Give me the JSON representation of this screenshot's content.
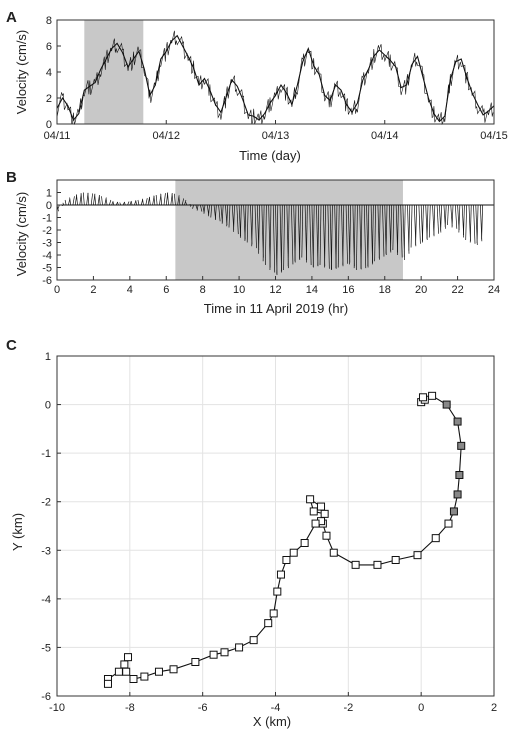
{
  "chart_data": [
    {
      "panel": "A",
      "type": "line",
      "xlabel": "Time (day)",
      "ylabel": "Velocity (cm/s)",
      "xlim": [
        0,
        4
      ],
      "ylim": [
        0,
        8
      ],
      "x_tick_labels": [
        "04/11",
        "04/12",
        "04/13",
        "04/14",
        "04/15"
      ],
      "yticks": [
        0,
        2,
        4,
        6,
        8
      ],
      "shaded_interval": [
        0.25,
        0.79
      ],
      "series": [
        {
          "x": [
            0,
            0.05,
            0.1,
            0.15,
            0.2,
            0.25,
            0.3,
            0.35,
            0.4,
            0.45,
            0.5,
            0.55,
            0.6,
            0.65,
            0.7,
            0.75,
            0.8,
            0.85,
            0.9,
            0.95,
            1.0,
            1.05,
            1.1,
            1.15,
            1.2,
            1.25,
            1.3,
            1.35,
            1.4,
            1.45,
            1.5,
            1.55,
            1.6,
            1.65,
            1.7,
            1.75,
            1.8,
            1.85,
            1.9,
            1.95,
            2.0,
            2.05,
            2.1,
            2.15,
            2.2,
            2.25,
            2.3,
            2.35,
            2.4,
            2.45,
            2.5,
            2.55,
            2.6,
            2.65,
            2.7,
            2.75,
            2.8,
            2.85,
            2.9,
            2.95,
            3.0,
            3.05,
            3.1,
            3.15,
            3.2,
            3.25,
            3.3,
            3.35,
            3.4,
            3.45,
            3.5,
            3.55,
            3.6,
            3.65,
            3.7,
            3.75,
            3.8,
            3.85,
            3.9,
            3.95,
            4.0
          ],
          "values": [
            1.2,
            2.0,
            1.4,
            0.3,
            0.8,
            2.6,
            2.9,
            3.2,
            4.2,
            5.0,
            5.8,
            6.2,
            5.5,
            4.4,
            5.0,
            5.6,
            4.2,
            2.2,
            3.0,
            5.0,
            5.6,
            6.4,
            6.8,
            6.0,
            5.2,
            4.3,
            3.0,
            3.5,
            2.6,
            1.5,
            0.9,
            2.1,
            3.4,
            2.9,
            1.9,
            0.7,
            0.6,
            0.3,
            0.8,
            1.6,
            2.2,
            3.0,
            2.4,
            1.5,
            3.0,
            4.8,
            5.8,
            4.5,
            3.8,
            2.2,
            1.8,
            3.0,
            2.6,
            1.5,
            0.9,
            1.6,
            3.4,
            4.2,
            5.2,
            5.7,
            5.3,
            4.9,
            4.4,
            2.8,
            3.0,
            4.6,
            5.2,
            3.6,
            2.0,
            0.8,
            0.2,
            0.6,
            3.4,
            4.8,
            5.0,
            3.6,
            2.4,
            1.5,
            0.7,
            1.0,
            1.4
          ]
        }
      ]
    },
    {
      "panel": "B",
      "type": "line",
      "xlabel": "Time in 11 April 2019 (hr)",
      "ylabel": "Velocity (cm/s)",
      "xlim": [
        0,
        24
      ],
      "ylim": [
        -6,
        2
      ],
      "xticks": [
        0,
        2,
        4,
        6,
        8,
        10,
        12,
        14,
        16,
        18,
        20,
        22,
        24
      ],
      "yticks": [
        -6,
        -5,
        -4,
        -3,
        -2,
        -1,
        0,
        1
      ],
      "shaded_interval": [
        6.5,
        19.0
      ],
      "series": [
        {
          "x": [
            0,
            0.5,
            1,
            1.5,
            2,
            2.5,
            3,
            3.5,
            4,
            4.5,
            5,
            5.5,
            6,
            6.5,
            7,
            7.5,
            8,
            8.5,
            9,
            9.5,
            10,
            10.5,
            11,
            11.5,
            12,
            12.5,
            13,
            13.5,
            14,
            14.5,
            15,
            15.5,
            16,
            16.5,
            17,
            17.5,
            18,
            18.5,
            19,
            19.5,
            20,
            20.5,
            21,
            21.5,
            22,
            22.5,
            23,
            23.5
          ],
          "values": [
            -0.5,
            0.4,
            0.8,
            1.0,
            0.9,
            0.7,
            0.3,
            0.2,
            0.3,
            0.4,
            0.6,
            0.8,
            1.0,
            0.9,
            0.4,
            -0.3,
            -0.6,
            -1.0,
            -1.4,
            -1.8,
            -2.5,
            -3.0,
            -3.6,
            -4.8,
            -5.6,
            -5.2,
            -4.6,
            -4.2,
            -5.0,
            -4.8,
            -5.2,
            -5.0,
            -4.6,
            -5.2,
            -5.0,
            -4.5,
            -4.0,
            -3.6,
            -4.4,
            -3.4,
            -3.0,
            -2.6,
            -2.2,
            -1.6,
            -2.0,
            -2.8,
            -3.2,
            -2.6
          ]
        }
      ]
    },
    {
      "panel": "C",
      "type": "line",
      "xlabel": "X (km)",
      "ylabel": "Y (km)",
      "xlim": [
        -10,
        2
      ],
      "ylim": [
        -6,
        1
      ],
      "xticks": [
        -10,
        -8,
        -6,
        -4,
        -2,
        0,
        2
      ],
      "yticks": [
        -6,
        -5,
        -4,
        -3,
        -2,
        -1,
        0,
        1
      ],
      "grid": true,
      "series": [
        {
          "x": [
            0.0,
            0.1,
            0.05,
            0.3,
            0.7,
            1.0,
            1.1,
            1.05,
            1.0,
            0.9,
            0.75,
            0.4,
            -0.1,
            -0.7,
            -1.2,
            -1.8,
            -2.4,
            -2.6,
            -2.7,
            -2.75,
            -3.05,
            -2.95,
            -2.65,
            -2.75,
            -2.9,
            -3.2,
            -3.5,
            -3.7,
            -3.85,
            -3.95,
            -4.05,
            -4.2,
            -4.6,
            -5.0,
            -5.4,
            -5.7,
            -6.2,
            -6.8,
            -7.2,
            -7.6,
            -7.9,
            -8.1,
            -8.15,
            -8.05,
            -8.3,
            -8.6,
            -8.6
          ],
          "values": [
            0.05,
            0.1,
            0.15,
            0.18,
            0.0,
            -0.35,
            -0.85,
            -1.45,
            -1.85,
            -2.2,
            -2.45,
            -2.75,
            -3.1,
            -3.2,
            -3.3,
            -3.3,
            -3.05,
            -2.7,
            -2.45,
            -2.1,
            -1.95,
            -2.2,
            -2.25,
            -2.4,
            -2.45,
            -2.85,
            -3.05,
            -3.2,
            -3.5,
            -3.85,
            -4.3,
            -4.5,
            -4.85,
            -5.0,
            -5.1,
            -5.15,
            -5.3,
            -5.45,
            -5.5,
            -5.6,
            -5.65,
            -5.5,
            -5.35,
            -5.2,
            -5.5,
            -5.65,
            -5.75
          ]
        }
      ]
    }
  ],
  "panel_labels": [
    "A",
    "B",
    "C"
  ]
}
